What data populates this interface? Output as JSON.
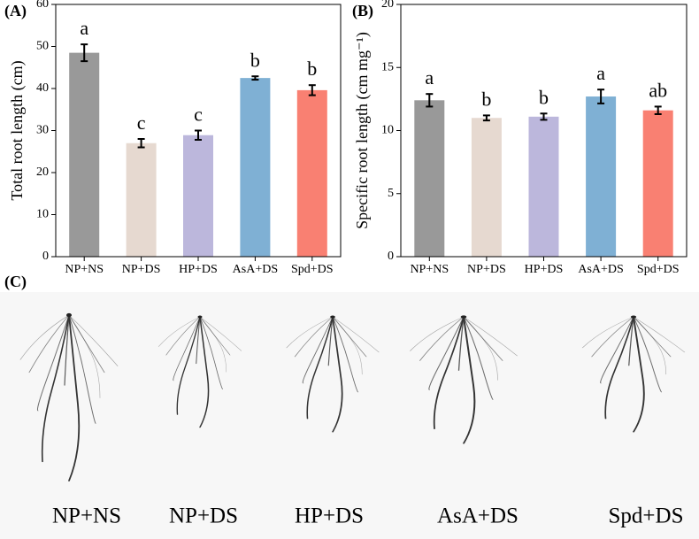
{
  "chart_data": [
    {
      "type": "bar",
      "panel_label": "(A)",
      "y_label": "Total root length (cm)",
      "categories": [
        "NP+NS",
        "NP+DS",
        "HP+DS",
        "AsA+DS",
        "Spd+DS"
      ],
      "series": [
        {
          "values": [
            48.5,
            27.0,
            28.9,
            42.5,
            39.6
          ],
          "errors": [
            2.0,
            1.0,
            1.1,
            0.4,
            1.2
          ],
          "colors": [
            "#999999",
            "#e6d9d0",
            "#bcb7dc",
            "#7fb0d4",
            "#f98072"
          ]
        }
      ],
      "annotations": [
        "a",
        "c",
        "c",
        "b",
        "b"
      ],
      "ylim": [
        0,
        60
      ],
      "yticks": [
        0,
        10,
        20,
        30,
        40,
        50,
        60
      ]
    },
    {
      "type": "bar",
      "panel_label": "(B)",
      "y_label": "Specific root length (cm mg⁻¹)",
      "categories": [
        "NP+NS",
        "NP+DS",
        "HP+DS",
        "AsA+DS",
        "Spd+DS"
      ],
      "series": [
        {
          "values": [
            12.4,
            11.0,
            11.1,
            12.7,
            11.6
          ],
          "errors": [
            0.5,
            0.2,
            0.25,
            0.55,
            0.3
          ],
          "colors": [
            "#999999",
            "#e6d9d0",
            "#bcb7dc",
            "#7fb0d4",
            "#f98072"
          ]
        }
      ],
      "annotations": [
        "a",
        "b",
        "b",
        "a",
        "ab"
      ],
      "ylim": [
        0,
        20
      ],
      "yticks": [
        0,
        5,
        10,
        15,
        20
      ]
    }
  ],
  "photo_panel": {
    "panel_label": "(C)",
    "labels": [
      "NP+NS",
      "NP+DS",
      "HP+DS",
      "AsA+DS",
      "Spd+DS"
    ]
  }
}
